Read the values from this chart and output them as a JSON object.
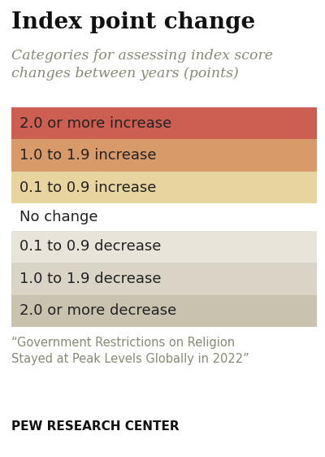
{
  "title": "Index point change",
  "subtitle": "Categories for assessing index score\nchanges between years (points)",
  "rows": [
    {
      "label": "2.0 or more increase",
      "color": "#cc5f52",
      "text_color": "#222222",
      "has_bg": true
    },
    {
      "label": "1.0 to 1.9 increase",
      "color": "#d99a6a",
      "text_color": "#222222",
      "has_bg": true
    },
    {
      "label": "0.1 to 0.9 increase",
      "color": "#e8d49e",
      "text_color": "#222222",
      "has_bg": true
    },
    {
      "label": "No change",
      "color": "#ffffff",
      "text_color": "#222222",
      "has_bg": false
    },
    {
      "label": "0.1 to 0.9 decrease",
      "color": "#e8e4da",
      "text_color": "#222222",
      "has_bg": true
    },
    {
      "label": "1.0 to 1.9 decrease",
      "color": "#d9d4c5",
      "text_color": "#222222",
      "has_bg": true
    },
    {
      "label": "2.0 or more decrease",
      "color": "#c8c2af",
      "text_color": "#222222",
      "has_bg": true
    }
  ],
  "footnote": "“Government Restrictions on Religion\nStayed at Peak Levels Globally in 2022”",
  "source": "PEW RESEARCH CENTER",
  "bg_color": "#ffffff",
  "title_fontsize": 20,
  "subtitle_fontsize": 12.5,
  "row_fontsize": 13,
  "footnote_fontsize": 10.5,
  "source_fontsize": 11
}
